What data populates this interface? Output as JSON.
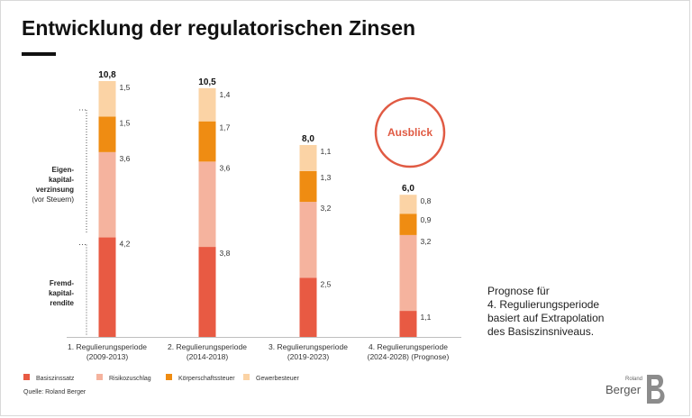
{
  "title": "Entwicklung der regulatorischen Zinsen",
  "chart_data": {
    "type": "bar",
    "stacked": true,
    "categories": [
      [
        "1. Regulierungsperiode",
        "(2009-2013)"
      ],
      [
        "2. Regulierungsperiode",
        "(2014-2018)"
      ],
      [
        "3. Regulierungsperiode",
        "(2019-2023)"
      ],
      [
        "4. Regulierungsperiode",
        "(2024-2028) (Prognose)"
      ]
    ],
    "totals": [
      "10,8",
      "10,5",
      "8,0",
      "6,0"
    ],
    "series": [
      {
        "name": "Basiszinssatz",
        "color": "#e85a43",
        "values": [
          4.2,
          3.8,
          2.5,
          1.1
        ],
        "labels": [
          "4,2",
          "3,8",
          "2,5",
          "1,1"
        ]
      },
      {
        "name": "Risikozuschlag",
        "color": "#f5b39e",
        "values": [
          3.6,
          3.6,
          3.2,
          3.2
        ],
        "labels": [
          "3,6",
          "3,6",
          "3,2",
          "3,2"
        ]
      },
      {
        "name": "Körperschaftssteuer",
        "color": "#ef8c12",
        "values": [
          1.5,
          1.7,
          1.3,
          0.9
        ],
        "labels": [
          "1,5",
          "1,7",
          "1,3",
          "0,9"
        ]
      },
      {
        "name": "Gewerbesteuer",
        "color": "#fbd3a5",
        "values": [
          1.5,
          1.4,
          1.1,
          0.8
        ],
        "labels": [
          "1,5",
          "1,4",
          "1,1",
          "0,8"
        ]
      }
    ],
    "side_labels": {
      "equity": [
        "Eigen-",
        "kapital-",
        "verzinsung",
        "(vor Steuern)"
      ],
      "debt": [
        "Fremd-",
        "kapital-",
        "rendite"
      ]
    },
    "annotation": "Ausblick",
    "annotation_color": "#e05a43"
  },
  "note_lines": [
    "Prognose für",
    "4. Regulierungsperiode",
    "basiert auf Extrapolation",
    "des Basiszinsniveaus."
  ],
  "source": "Quelle: Roland Berger",
  "logo": {
    "small": "Roland",
    "big": "Berger"
  }
}
